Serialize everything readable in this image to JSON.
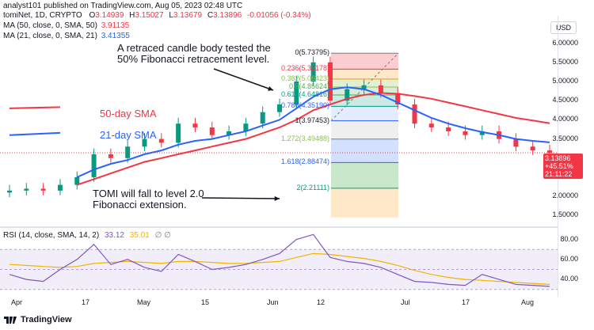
{
  "header": {
    "line": "analyst101 published on TradingView.com, Aug 05, 2023 02:48 UTC"
  },
  "legend": {
    "symbol": "tomiNet, 1D, CRYPTO",
    "o_label": "O",
    "o": "3.14939",
    "h_label": "H",
    "h": "3.15027",
    "l_label": "L",
    "l": "3.13679",
    "c_label": "C",
    "c": "3.13896",
    "change": "-0.01056 (-0.34%)",
    "ma50_label": "MA (50, close, 0, SMA, 50)",
    "ma50_value": "3.91135",
    "ma21_label": "MA (21, close, 0, SMA, 21)",
    "ma21_value": "3.41355"
  },
  "currency_button": "USD",
  "price_badge": {
    "price": "3.13896",
    "change": "+45.51%",
    "time": "21:11:22"
  },
  "price_axis_ticks": [
    "6.00000",
    "5.50000",
    "5.00000",
    "4.50000",
    "4.00000",
    "3.50000",
    "3.00000",
    "2.50000",
    "2.00000",
    "1.50000"
  ],
  "rsi": {
    "label": "RSI (14, close, SMA, 14, 2)",
    "value1": "33.12",
    "value2": "35.01",
    "icons": "∅ ∅",
    "axis_ticks": [
      "80.00",
      "60.00",
      "40.00"
    ]
  },
  "time_axis": [
    "Apr",
    "17",
    "May",
    "15",
    "Jun",
    "12",
    "Jul",
    "17",
    "Aug"
  ],
  "fib_levels": [
    {
      "label": "0(5.73795)",
      "color": "#131722"
    },
    {
      "label": "0.236(5.32178)",
      "color": "#f23645"
    },
    {
      "label": "0.382(5.06423)",
      "color": "#8bc34a"
    },
    {
      "label": "0.5(4.85624)",
      "color": "#4caf50"
    },
    {
      "label": "0.618(4.64816)",
      "color": "#089981"
    },
    {
      "label": "0.786(4.35190)",
      "color": "#2962ff"
    },
    {
      "label": "1(3.97453)",
      "color": "#131722"
    },
    {
      "label": "1.272(3.49488)",
      "color": "#8bc34a"
    },
    {
      "label": "1.618(2.88474)",
      "color": "#2962ff"
    },
    {
      "label": "2(2.21111)",
      "color": "#089981"
    }
  ],
  "annotations": {
    "top": "A retraced candle body tested the 50% Fibonacci retracement level.",
    "bottom": "TOMI will fall to level 2.0 Fibonacci extension.",
    "sma50": "50-day SMA",
    "sma21": "21-day SMA"
  },
  "footer": "TradingView",
  "chart_data": {
    "type": "candlestick",
    "title": "tomiNet, 1D, CRYPTO",
    "ylim": [
      1.3,
      6.55
    ],
    "x": [
      "2023-03-28",
      "2023-04-01",
      "2023-04-05",
      "2023-04-09",
      "2023-04-13",
      "2023-04-17",
      "2023-04-21",
      "2023-04-25",
      "2023-04-29",
      "2023-05-03",
      "2023-05-07",
      "2023-05-11",
      "2023-05-15",
      "2023-05-19",
      "2023-05-23",
      "2023-05-27",
      "2023-05-31",
      "2023-06-04",
      "2023-06-08",
      "2023-06-12",
      "2023-06-16",
      "2023-06-20",
      "2023-06-24",
      "2023-06-28",
      "2023-07-02",
      "2023-07-06",
      "2023-07-10",
      "2023-07-14",
      "2023-07-18",
      "2023-07-22",
      "2023-07-26",
      "2023-07-30",
      "2023-08-03"
    ],
    "close": [
      2.15,
      2.2,
      2.15,
      2.3,
      2.5,
      3.1,
      3.0,
      3.3,
      3.5,
      3.4,
      3.9,
      3.8,
      3.6,
      3.7,
      3.9,
      4.2,
      4.4,
      5.0,
      5.5,
      4.5,
      4.8,
      4.9,
      4.7,
      4.4,
      3.9,
      3.8,
      3.7,
      3.6,
      3.7,
      3.5,
      3.3,
      3.2,
      3.14
    ],
    "ma50": [
      4.3,
      4.31,
      4.32,
      4.33,
      2.3,
      2.45,
      2.6,
      2.75,
      2.9,
      3.0,
      3.1,
      3.2,
      3.3,
      3.4,
      3.5,
      3.65,
      3.8,
      4.0,
      4.25,
      4.4,
      4.55,
      4.65,
      4.7,
      4.68,
      4.62,
      4.55,
      4.45,
      4.35,
      4.25,
      4.15,
      4.05,
      3.98,
      3.91
    ],
    "ma21": [
      3.6,
      3.62,
      3.64,
      3.66,
      2.5,
      2.7,
      2.85,
      2.95,
      3.1,
      3.2,
      3.35,
      3.45,
      3.5,
      3.6,
      3.7,
      3.85,
      4.0,
      4.3,
      4.6,
      4.8,
      4.85,
      4.8,
      4.65,
      4.45,
      4.25,
      4.05,
      3.9,
      3.78,
      3.68,
      3.6,
      3.5,
      3.45,
      3.41
    ],
    "rsi": [
      45,
      40,
      38,
      50,
      60,
      75,
      55,
      60,
      52,
      48,
      65,
      58,
      50,
      52,
      55,
      60,
      66,
      80,
      85,
      62,
      58,
      56,
      52,
      45,
      38,
      37,
      35,
      34,
      45,
      40,
      35,
      34,
      33
    ],
    "rsi_sma": [
      55,
      54,
      53,
      52,
      53,
      56,
      57,
      58,
      57,
      56,
      58,
      58,
      57,
      56,
      56,
      57,
      58,
      62,
      66,
      65,
      63,
      61,
      58,
      54,
      49,
      45,
      42,
      40,
      39,
      38,
      37,
      36,
      35
    ]
  }
}
